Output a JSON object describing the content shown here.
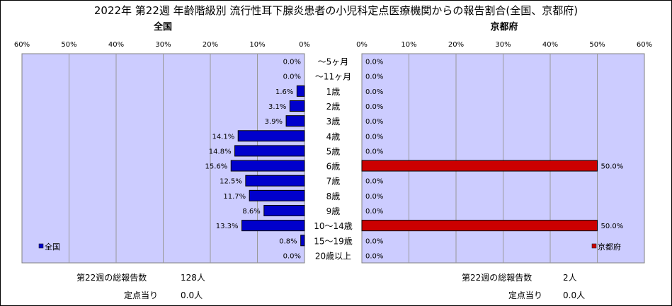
{
  "chart_data": {
    "type": "bar",
    "title": "2022年 第22週 年齢階級別 流行性耳下腺炎患者の小児科定点医療機関からの報告割合(全国、京都府)",
    "categories": [
      "～5ヶ月",
      "～11ヶ月",
      "1歳",
      "2歳",
      "3歳",
      "4歳",
      "5歳",
      "6歳",
      "7歳",
      "8歳",
      "9歳",
      "10～14歳",
      "15～19歳",
      "20歳以上"
    ],
    "panels": [
      {
        "name": "全国",
        "legend": "全国",
        "legend_position": "bottom-left",
        "direction": "left",
        "color": "#0000cc",
        "values": [
          0.0,
          0.0,
          1.6,
          3.1,
          3.9,
          14.1,
          14.8,
          15.6,
          12.5,
          11.7,
          8.6,
          13.3,
          0.8,
          0.0
        ],
        "value_labels": [
          "0.0%",
          "0.0%",
          "1.6%",
          "3.1%",
          "3.9%",
          "14.1%",
          "14.8%",
          "15.6%",
          "12.5%",
          "11.7%",
          "8.6%",
          "13.3%",
          "0.8%",
          "0.0%"
        ],
        "xlim": [
          0,
          60
        ],
        "ticks": [
          "0%",
          "10%",
          "20%",
          "30%",
          "40%",
          "50%",
          "60%"
        ],
        "summary": {
          "total_label": "第22週の総報告数",
          "total_value": "128人",
          "per_label": "定点当り",
          "per_value": "0.0人"
        }
      },
      {
        "name": "京都府",
        "legend": "京都府",
        "legend_position": "bottom-right",
        "direction": "right",
        "color": "#cc0000",
        "values": [
          0.0,
          0.0,
          0.0,
          0.0,
          0.0,
          0.0,
          0.0,
          50.0,
          0.0,
          0.0,
          0.0,
          50.0,
          0.0,
          0.0
        ],
        "value_labels": [
          "0.0%",
          "0.0%",
          "0.0%",
          "0.0%",
          "0.0%",
          "0.0%",
          "0.0%",
          "50.0%",
          "0.0%",
          "0.0%",
          "0.0%",
          "50.0%",
          "0.0%",
          "0.0%"
        ],
        "xlim": [
          0,
          60
        ],
        "ticks": [
          "0%",
          "10%",
          "20%",
          "30%",
          "40%",
          "50%",
          "60%"
        ],
        "summary": {
          "total_label": "第22週の総報告数",
          "total_value": "2人",
          "per_label": "定点当り",
          "per_value": "0.0人"
        }
      }
    ],
    "grid": true
  },
  "colors": {
    "plot_background": "#ccccff",
    "gridline": "#999999"
  }
}
